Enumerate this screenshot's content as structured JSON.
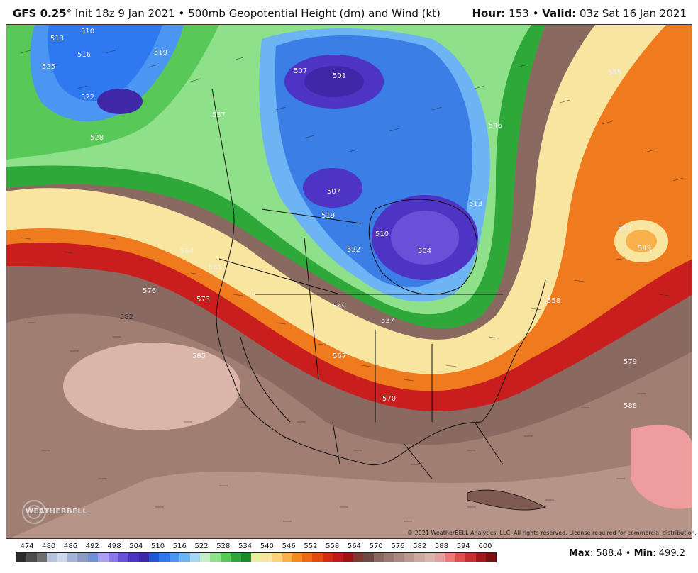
{
  "header": {
    "model": "GFS 0.25",
    "degree": "°",
    "init": "Init 18z 9 Jan 2021",
    "bullet": "•",
    "product": "500mb Geopotential Height (dm) and Wind (kt)",
    "hour_label": "Hour:",
    "hour_value": "153",
    "valid_label": "Valid:",
    "valid_value": "03z Sat 16 Jan 2021"
  },
  "map": {
    "contour_labels": [
      {
        "text": "510"
      },
      {
        "text": "513"
      },
      {
        "text": "516"
      },
      {
        "text": "519"
      },
      {
        "text": "522"
      },
      {
        "text": "525"
      },
      {
        "text": "528"
      },
      {
        "text": "537"
      },
      {
        "text": "507"
      },
      {
        "text": "501"
      },
      {
        "text": "504"
      },
      {
        "text": "507"
      },
      {
        "text": "510"
      },
      {
        "text": "513"
      },
      {
        "text": "519"
      },
      {
        "text": "522"
      },
      {
        "text": "546"
      },
      {
        "text": "537"
      },
      {
        "text": "549"
      },
      {
        "text": "555"
      },
      {
        "text": "558"
      },
      {
        "text": "564"
      },
      {
        "text": "561"
      },
      {
        "text": "567"
      },
      {
        "text": "570"
      },
      {
        "text": "573"
      },
      {
        "text": "576"
      },
      {
        "text": "579"
      },
      {
        "text": "582"
      },
      {
        "text": "585"
      },
      {
        "text": "588"
      },
      {
        "text": "552"
      },
      {
        "text": "549"
      }
    ],
    "copyright": "© 2021 WeatherBELL Analytics, LLC. All rights reserved. License required for commercial distribution.",
    "logo_text": "WEATHERBELL",
    "colors": {
      "ridge_brown": "#8a6a60",
      "high_pink": "#dcb5aa",
      "red_band": "#c81e1e",
      "orange_band": "#f08a1e",
      "yellow_band": "#f8e6a0",
      "green_band": "#2fa83a",
      "light_green": "#8fe08a",
      "blue_band": "#3a7ee6",
      "purple_low": "#4a3cc8"
    }
  },
  "scale": {
    "labels": [
      "474",
      "480",
      "486",
      "492",
      "498",
      "504",
      "510",
      "516",
      "522",
      "528",
      "534",
      "540",
      "546",
      "552",
      "558",
      "564",
      "570",
      "576",
      "582",
      "588",
      "594",
      "600"
    ],
    "colors": [
      "#2b2b2b",
      "#4d4d4d",
      "#6e6e6e",
      "#b6c3dc",
      "#cfd8ee",
      "#a2b4d8",
      "#8c9cc4",
      "#6f8fd6",
      "#a8a0f0",
      "#8a78e8",
      "#6a4fd8",
      "#4e34c4",
      "#3f28a8",
      "#1e5ad6",
      "#2e78f0",
      "#4a96f0",
      "#6cb4f4",
      "#a6d6f4",
      "#c8f0c8",
      "#8ee08a",
      "#58c858",
      "#2ea83a",
      "#1c8a2a",
      "#e8f0a0",
      "#f8e6a0",
      "#fcd27a",
      "#f8b04a",
      "#f48a1e",
      "#ee6a14",
      "#e44a10",
      "#d42a10",
      "#c01a1a",
      "#a01414",
      "#7e3a30",
      "#6e4a42",
      "#8a6a60",
      "#9a7a70",
      "#aa8a80",
      "#ba9a90",
      "#cbaaa0",
      "#dcb5aa",
      "#e4a0a0",
      "#ec7878",
      "#e05050",
      "#c83030",
      "#a01818",
      "#7a1010"
    ]
  },
  "maxmin": {
    "max_label": "Max",
    "max_value": ": 588.4",
    "bullet": "•",
    "min_label": "Min",
    "min_value": ": 499.2"
  }
}
